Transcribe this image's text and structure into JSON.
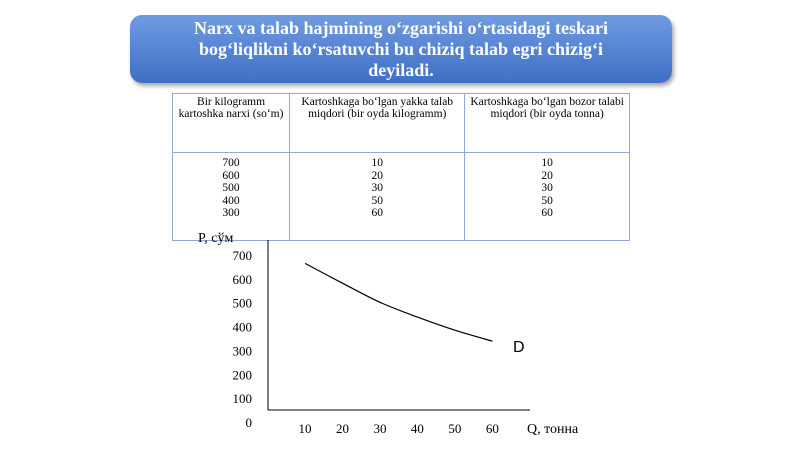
{
  "header": {
    "title": "Narx va talab hajmining o‘zgarishi o‘rtasidagi teskari bog‘liqlikni ko‘rsatuvchi bu chiziq talab egri chizig‘i deyiladi."
  },
  "table": {
    "columns": [
      "Bir kilogramm kartoshka narxi (so‘m)",
      "Kartoshkaga bo‘lgan yakka talab miqdori (bir oyda kilogramm)",
      "Kartoshkaga bo‘lgan bozor talabi miqdori (bir oyda tonna)"
    ],
    "rows": [
      [
        700,
        10,
        10
      ],
      [
        600,
        20,
        20
      ],
      [
        500,
        30,
        30
      ],
      [
        400,
        50,
        50
      ],
      [
        300,
        60,
        60
      ]
    ]
  },
  "chart_data": {
    "type": "line",
    "y_label": "P, сўм",
    "x_label": "Q, тонна",
    "curve_label": "D",
    "x": [
      10,
      20,
      30,
      40,
      50,
      60
    ],
    "values": [
      673,
      590,
      510,
      448,
      393,
      347
    ],
    "color": "#000000",
    "xlim": [
      0,
      70
    ],
    "xticks": [
      10,
      20,
      30,
      40,
      50,
      60
    ],
    "ylim": [
      0,
      750
    ],
    "yticks": [
      0,
      100,
      200,
      300,
      400,
      500,
      600,
      700
    ]
  }
}
